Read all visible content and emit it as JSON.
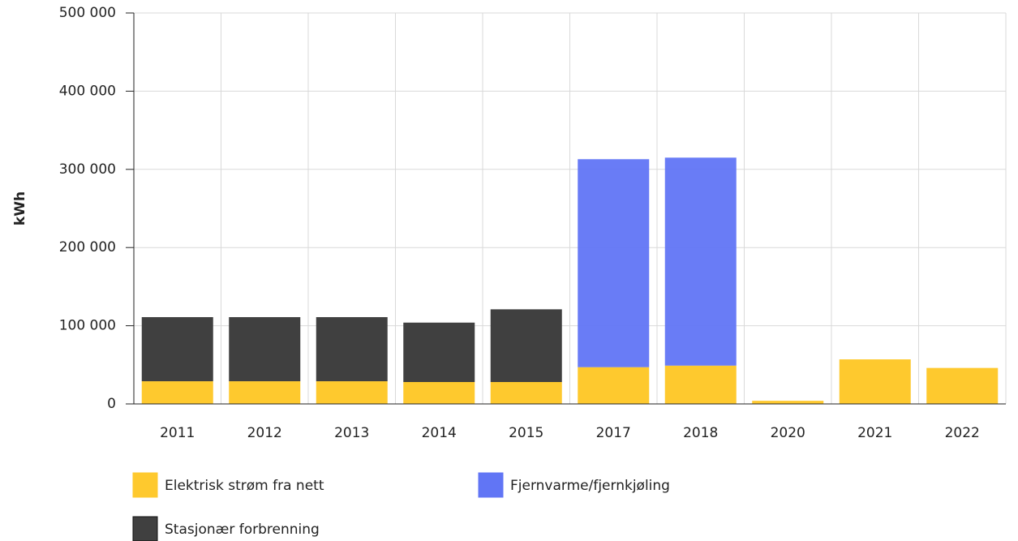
{
  "chart_data": {
    "type": "stacked_bar",
    "ylabel": "kWh",
    "categories": [
      "2011",
      "2012",
      "2013",
      "2014",
      "2015",
      "2017",
      "2018",
      "2020",
      "2021",
      "2022"
    ],
    "series": [
      {
        "name": "Elektrisk strøm fra nett",
        "color": "#fec92e",
        "values": [
          29000,
          29000,
          29000,
          28000,
          28000,
          47000,
          49000,
          4000,
          57000,
          46000
        ]
      },
      {
        "name": "Fjernvarme/fjernkjøling",
        "color": "#6175f5",
        "values": [
          null,
          null,
          null,
          null,
          null,
          266000,
          266000,
          null,
          null,
          null
        ]
      },
      {
        "name": "Stasjonær forbrenning",
        "color": "#404040",
        "values": [
          82000,
          82000,
          82000,
          76000,
          93000,
          null,
          null,
          null,
          null,
          null
        ]
      }
    ],
    "ylim": [
      0,
      500000
    ],
    "yticks": [
      0,
      {
        "value": 100000,
        "label": "100 000"
      },
      {
        "value": 200000,
        "label": "200 000"
      },
      {
        "value": 300000,
        "label": "300 000"
      },
      {
        "value": 400000,
        "label": "400 000"
      },
      {
        "value": 500000,
        "label": "500 000"
      }
    ],
    "grid": true
  }
}
